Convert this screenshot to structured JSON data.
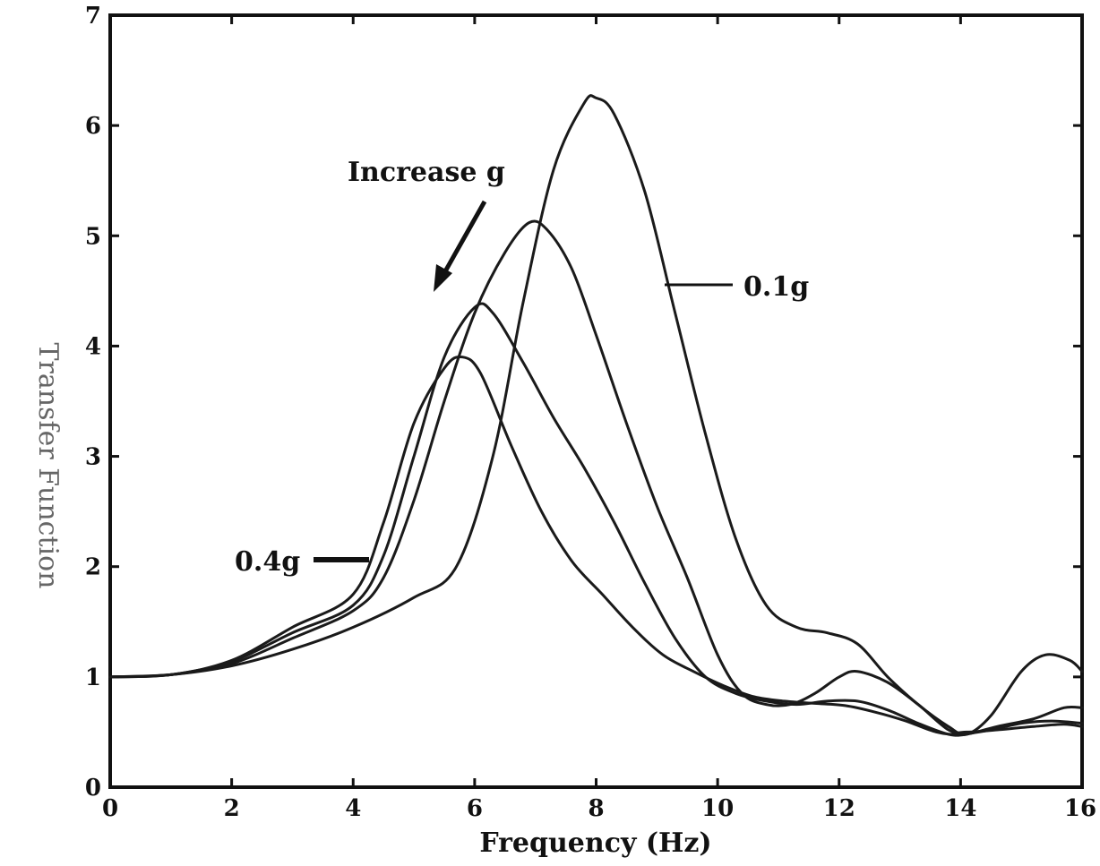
{
  "chart_data": {
    "type": "line",
    "title": "",
    "xlabel": "Frequency (Hz)",
    "ylabel": "Transfer Function",
    "xlim": [
      0,
      16
    ],
    "ylim": [
      0,
      7
    ],
    "xticks": [
      0,
      2,
      4,
      6,
      8,
      10,
      12,
      14,
      16
    ],
    "yticks": [
      0,
      1,
      2,
      3,
      4,
      5,
      6,
      7
    ],
    "grid": false,
    "annotations": {
      "increase": "Increase g",
      "low": "0.1g",
      "high": "0.4g"
    },
    "series": [
      {
        "values": [
          [
            0,
            1.0
          ],
          [
            1,
            1.02
          ],
          [
            2,
            1.1
          ],
          [
            3,
            1.25
          ],
          [
            4,
            1.45
          ],
          [
            5,
            1.72
          ],
          [
            5.7,
            2.0
          ],
          [
            6.3,
            3.0
          ],
          [
            6.8,
            4.4
          ],
          [
            7.3,
            5.6
          ],
          [
            7.8,
            6.2
          ],
          [
            8.0,
            6.25
          ],
          [
            8.3,
            6.1
          ],
          [
            8.8,
            5.4
          ],
          [
            9.3,
            4.3
          ],
          [
            9.8,
            3.2
          ],
          [
            10.3,
            2.25
          ],
          [
            10.8,
            1.65
          ],
          [
            11.3,
            1.45
          ],
          [
            11.8,
            1.4
          ],
          [
            12.3,
            1.3
          ],
          [
            12.8,
            1.0
          ],
          [
            13.3,
            0.75
          ],
          [
            13.8,
            0.55
          ],
          [
            14.1,
            0.48
          ],
          [
            14.5,
            0.65
          ],
          [
            15.0,
            1.05
          ],
          [
            15.4,
            1.2
          ],
          [
            15.8,
            1.15
          ],
          [
            16,
            1.05
          ]
        ]
      },
      {
        "values": [
          [
            0,
            1.0
          ],
          [
            1,
            1.02
          ],
          [
            2,
            1.12
          ],
          [
            3,
            1.35
          ],
          [
            4,
            1.6
          ],
          [
            4.5,
            1.9
          ],
          [
            5.0,
            2.6
          ],
          [
            5.5,
            3.5
          ],
          [
            6.0,
            4.3
          ],
          [
            6.5,
            4.85
          ],
          [
            6.9,
            5.12
          ],
          [
            7.2,
            5.05
          ],
          [
            7.6,
            4.7
          ],
          [
            8.0,
            4.1
          ],
          [
            8.5,
            3.3
          ],
          [
            9.0,
            2.55
          ],
          [
            9.5,
            1.9
          ],
          [
            10.0,
            1.2
          ],
          [
            10.4,
            0.85
          ],
          [
            10.8,
            0.75
          ],
          [
            11.2,
            0.75
          ],
          [
            11.6,
            0.85
          ],
          [
            12.0,
            1.0
          ],
          [
            12.3,
            1.05
          ],
          [
            12.8,
            0.95
          ],
          [
            13.3,
            0.75
          ],
          [
            13.8,
            0.52
          ],
          [
            14.1,
            0.5
          ],
          [
            14.6,
            0.52
          ],
          [
            15.2,
            0.55
          ],
          [
            15.7,
            0.57
          ],
          [
            16,
            0.55
          ]
        ]
      },
      {
        "values": [
          [
            0,
            1.0
          ],
          [
            1,
            1.02
          ],
          [
            2,
            1.14
          ],
          [
            3,
            1.4
          ],
          [
            4,
            1.65
          ],
          [
            4.5,
            2.1
          ],
          [
            5.0,
            3.0
          ],
          [
            5.5,
            3.9
          ],
          [
            6.0,
            4.35
          ],
          [
            6.3,
            4.3
          ],
          [
            6.8,
            3.85
          ],
          [
            7.3,
            3.35
          ],
          [
            7.8,
            2.9
          ],
          [
            8.3,
            2.4
          ],
          [
            8.8,
            1.85
          ],
          [
            9.3,
            1.35
          ],
          [
            9.8,
            1.0
          ],
          [
            10.3,
            0.85
          ],
          [
            10.8,
            0.78
          ],
          [
            11.3,
            0.75
          ],
          [
            11.8,
            0.78
          ],
          [
            12.3,
            0.78
          ],
          [
            12.8,
            0.7
          ],
          [
            13.3,
            0.58
          ],
          [
            13.8,
            0.48
          ],
          [
            14.1,
            0.48
          ],
          [
            14.6,
            0.55
          ],
          [
            15.2,
            0.62
          ],
          [
            15.7,
            0.72
          ],
          [
            16,
            0.72
          ]
        ]
      },
      {
        "values": [
          [
            0,
            1.0
          ],
          [
            1,
            1.02
          ],
          [
            2,
            1.15
          ],
          [
            3,
            1.45
          ],
          [
            4,
            1.75
          ],
          [
            4.5,
            2.4
          ],
          [
            5.0,
            3.3
          ],
          [
            5.5,
            3.8
          ],
          [
            5.8,
            3.9
          ],
          [
            6.1,
            3.75
          ],
          [
            6.6,
            3.1
          ],
          [
            7.1,
            2.5
          ],
          [
            7.6,
            2.05
          ],
          [
            8.1,
            1.75
          ],
          [
            8.6,
            1.45
          ],
          [
            9.1,
            1.2
          ],
          [
            9.6,
            1.05
          ],
          [
            10.1,
            0.92
          ],
          [
            10.6,
            0.82
          ],
          [
            11.1,
            0.78
          ],
          [
            11.6,
            0.76
          ],
          [
            12.1,
            0.74
          ],
          [
            12.6,
            0.68
          ],
          [
            13.1,
            0.6
          ],
          [
            13.6,
            0.5
          ],
          [
            14.0,
            0.48
          ],
          [
            14.5,
            0.52
          ],
          [
            15.0,
            0.58
          ],
          [
            15.5,
            0.6
          ],
          [
            16,
            0.58
          ]
        ]
      }
    ]
  }
}
